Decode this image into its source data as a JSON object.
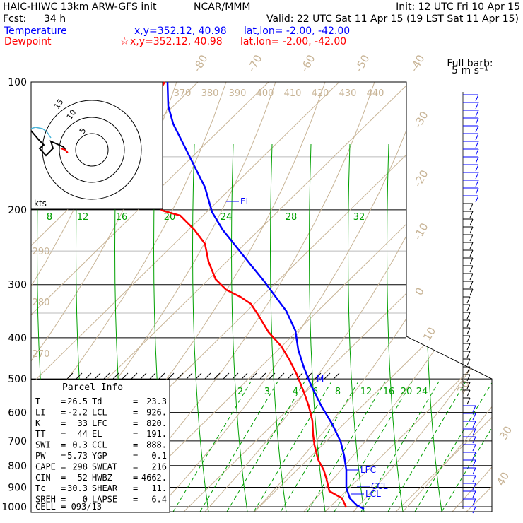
{
  "header": {
    "model": "HAIC-HIWC 13km ARW-GFS init",
    "org": "NCAR/MMM",
    "init": "Init: 12 UTC Fri 10 Apr 15",
    "fcst_label": "Fcst:",
    "fcst_value": "34 h",
    "valid": "Valid: 22 UTC Sat 11 Apr 15 (19 LST Sat 11 Apr 15)",
    "temperature_label": "Temperature",
    "temperature_xy": "x,y=352.12, 40.98",
    "temperature_latlon": "lat,lon= -2.00, -42.00",
    "dewpoint_label": "Dewpoint",
    "dewpoint_xy": "x,y=352.12, 40.98",
    "dewpoint_latlon": "lat,lon= -2.00, -42.00",
    "barb_title_1": "Full barb:",
    "barb_title_2": "5 m s⁻¹"
  },
  "chart_data": {
    "type": "line",
    "pressure_levels": [
      "100",
      "200",
      "300",
      "400",
      "500",
      "600",
      "700",
      "800",
      "900",
      "1000"
    ],
    "isotherm_labels": [
      "-80",
      "-70",
      "-60",
      "-50",
      "-40",
      "-30",
      "-20",
      "-10",
      "0",
      "10",
      "20",
      "30",
      "40"
    ],
    "theta_labels": [
      "370",
      "380",
      "390",
      "400",
      "410",
      "420",
      "430",
      "440"
    ],
    "theta_left_labels": [
      "290",
      "280",
      "270"
    ],
    "mixing_ratio_top": [
      "8",
      "12",
      "16",
      "20",
      "24",
      "28",
      "32"
    ],
    "mixing_ratio_bottom": [
      "2",
      "3",
      "4",
      "6",
      "8",
      "12",
      "16",
      "20",
      "24"
    ],
    "hodograph": {
      "unit_label": "kts",
      "ring_labels": [
        "5",
        "10",
        "15"
      ]
    },
    "series": [
      {
        "name": "Temperature",
        "color": "#0000ff",
        "x_points": [
          0.255,
          0.285,
          0.335,
          0.395,
          0.455,
          0.49,
          0.525,
          0.57,
          0.62,
          0.66,
          0.7,
          0.74,
          0.79,
          0.83,
          0.87,
          0.9,
          0.93,
          0.96,
          1.0
        ],
        "pressure": [
          100,
          130,
          160,
          190,
          220,
          250,
          280,
          320,
          360,
          400,
          440,
          480,
          540,
          600,
          660,
          720,
          780,
          850,
          930
        ]
      },
      {
        "name": "Dewpoint",
        "color": "#ff0000"
      }
    ],
    "levels": [
      {
        "label": "EL",
        "p": 191
      },
      {
        "label": "LFC",
        "p": 820
      },
      {
        "label": "CCL",
        "p": 888
      },
      {
        "label": "LCL",
        "p": 926
      }
    ],
    "parcel_mark": "M"
  },
  "parcel": {
    "title": "Parcel Info",
    "rows": [
      [
        "T",
        "26.5",
        "Td",
        "23.3"
      ],
      [
        "LI",
        "-2.2",
        "LCL",
        "926."
      ],
      [
        "K",
        "33",
        "LFC",
        "820."
      ],
      [
        "TT",
        "44",
        "EL",
        "191."
      ],
      [
        "SWI",
        "0.3",
        "CCL",
        "888."
      ],
      [
        "PW",
        "5.73",
        "YGP",
        "0.1"
      ],
      [
        "CAPE",
        "298",
        "SWEAT",
        "216"
      ],
      [
        "CIN",
        "-52",
        "HWBZ",
        "4662."
      ],
      [
        "Tc",
        "30.3",
        "SHEAR",
        "11."
      ],
      [
        "SREH",
        "0",
        "LAPSE",
        "6.4"
      ]
    ],
    "cell": "CELL = 093/13"
  },
  "colors": {
    "temp": "#0000ff",
    "dew": "#ff0000",
    "dry": "#c8b496",
    "moist": "#00a000",
    "hodo_teal": "#4ab4d8"
  }
}
